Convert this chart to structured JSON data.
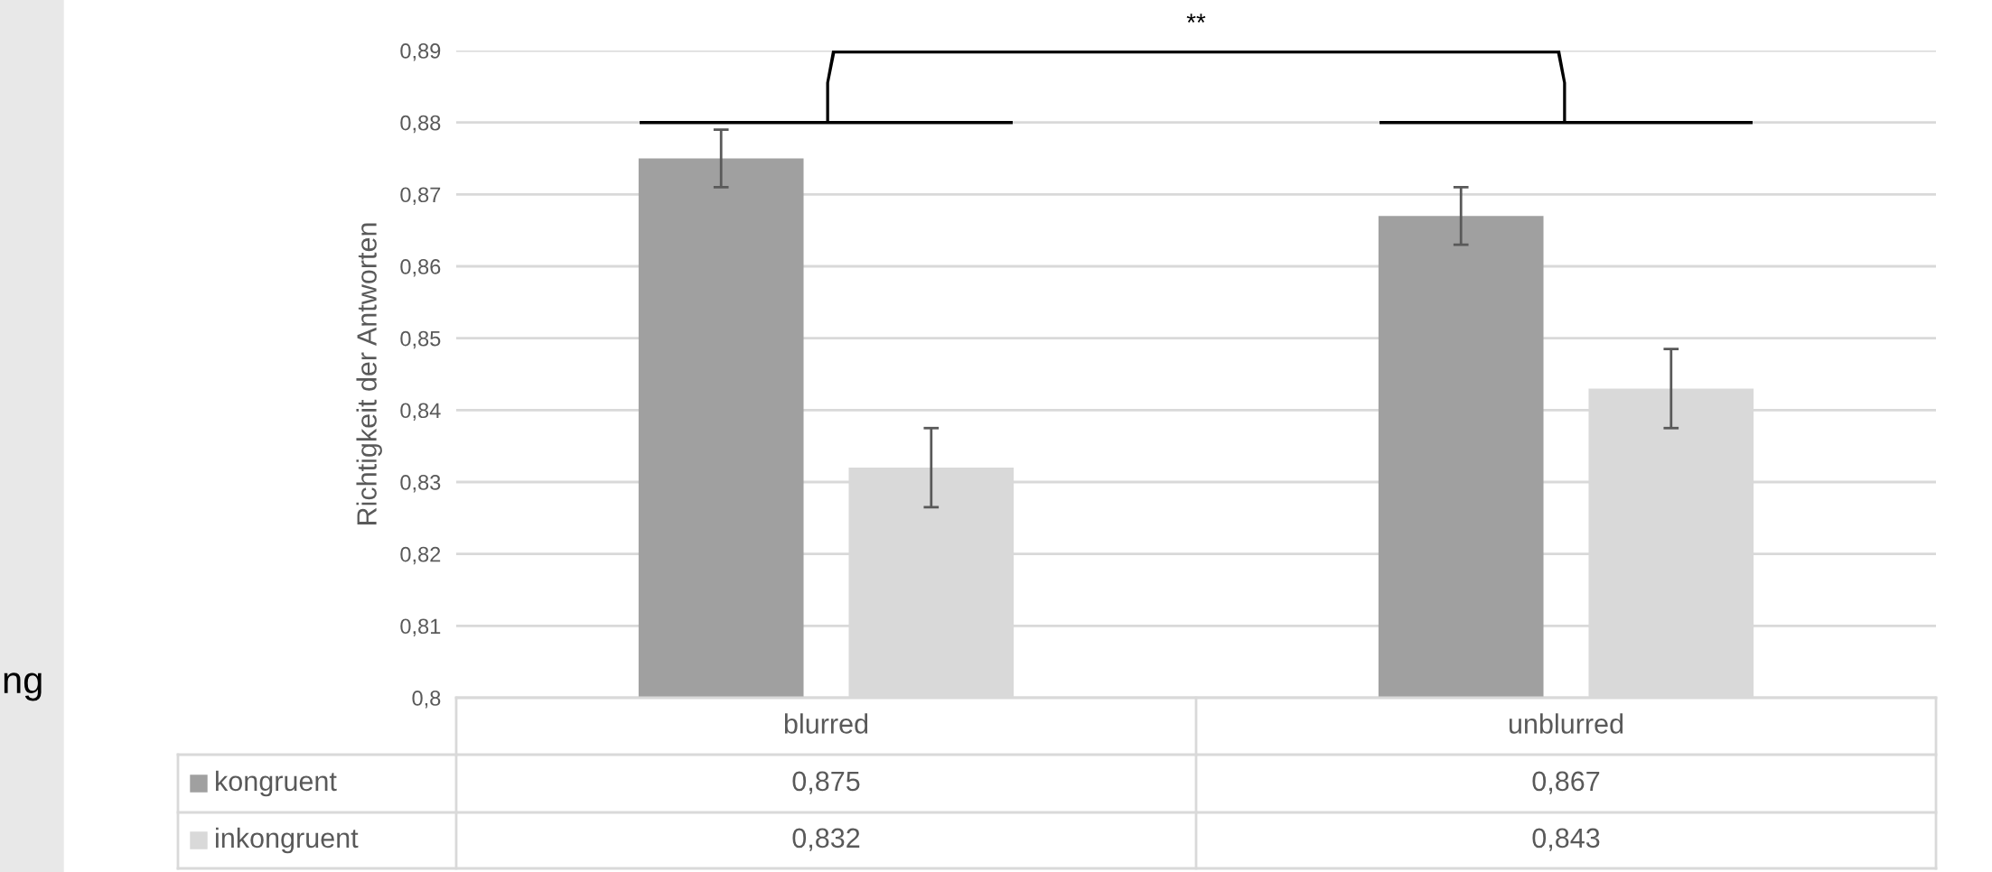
{
  "chart_data": {
    "type": "bar",
    "ylabel": "Richtigkeit der Antworten",
    "categories": [
      "blurred",
      "unblurred"
    ],
    "series": [
      {
        "name": "kongruent",
        "color": "#a0a0a0",
        "values": [
          0.875,
          0.867
        ],
        "errors": [
          0.004,
          0.004
        ],
        "value_labels": [
          "0,875",
          "0,867"
        ]
      },
      {
        "name": "inkongruent",
        "color": "#d9d9d9",
        "values": [
          0.832,
          0.843
        ],
        "errors": [
          0.0055,
          0.0055
        ],
        "value_labels": [
          "0,832",
          "0,843"
        ]
      }
    ],
    "ylim": [
      0.8,
      0.89
    ],
    "yticks": [
      {
        "value": 0.8,
        "label": "0,8"
      },
      {
        "value": 0.81,
        "label": "0,81"
      },
      {
        "value": 0.82,
        "label": "0,82"
      },
      {
        "value": 0.83,
        "label": "0,83"
      },
      {
        "value": 0.84,
        "label": "0,84"
      },
      {
        "value": 0.85,
        "label": "0,85"
      },
      {
        "value": 0.86,
        "label": "0,86"
      },
      {
        "value": 0.87,
        "label": "0,87"
      },
      {
        "value": 0.88,
        "label": "0,88"
      },
      {
        "value": 0.89,
        "label": "0,89"
      }
    ],
    "grid": "y",
    "legend": "bottom",
    "annotations": [
      "**",
      "ng"
    ]
  }
}
